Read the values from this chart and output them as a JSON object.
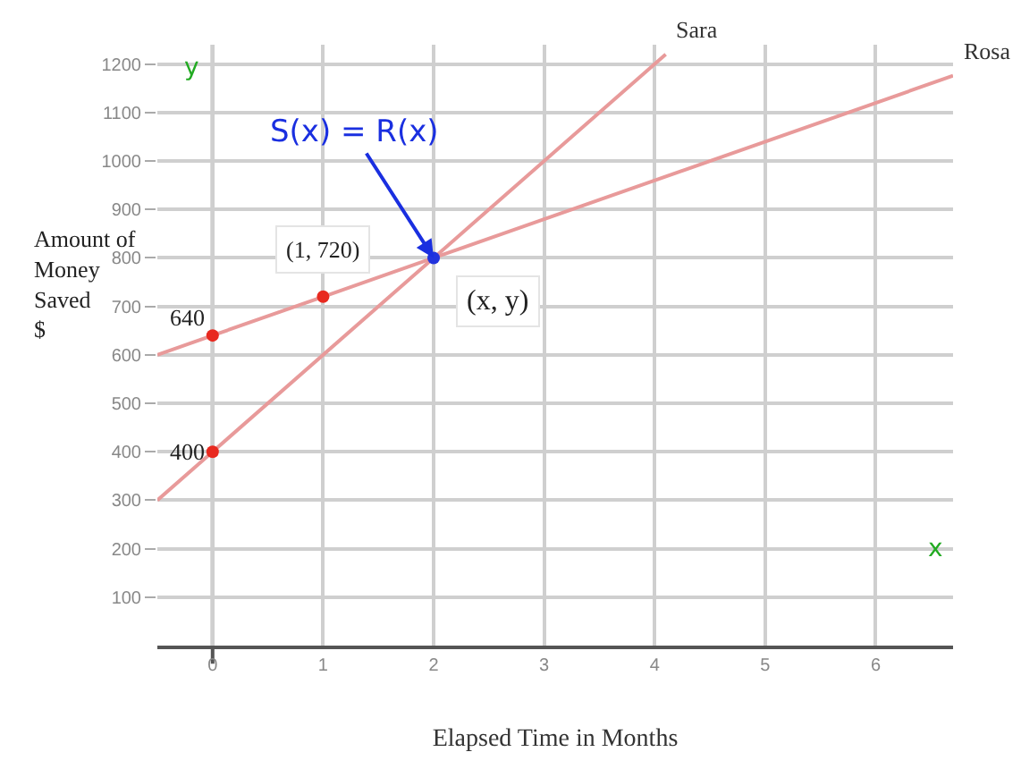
{
  "chart_data": {
    "type": "line",
    "xlabel": "Elapsed Time in Months",
    "ylabel": "Amount of\nMoney\nSaved\n$",
    "series": [
      {
        "name": "Sara",
        "color": "#e89a9a",
        "x": [
          -0.5,
          0,
          2,
          4.1
        ],
        "values": [
          300,
          400,
          800,
          1220
        ]
      },
      {
        "name": "Rosa",
        "color": "#e89a9a",
        "x": [
          -0.5,
          0,
          1,
          2,
          6.7
        ],
        "values": [
          600,
          640,
          720,
          800,
          1176
        ]
      },
      {
        "type": "scatter",
        "color": "#e8291f",
        "x": [
          0,
          0,
          1
        ],
        "values": [
          400,
          640,
          720
        ],
        "marker": "circle"
      },
      {
        "type": "scatter",
        "color": "#2233dd",
        "x": [
          2
        ],
        "values": [
          800
        ],
        "marker": "circle"
      }
    ],
    "xlim": [
      -0.5,
      6.7
    ],
    "xticks": [
      0,
      1,
      2,
      3,
      4,
      5,
      6
    ],
    "ylim": [
      0,
      1240
    ],
    "yticks": [
      100,
      200,
      300,
      400,
      500,
      600,
      700,
      800,
      900,
      1000,
      1100,
      1200
    ],
    "grid": true,
    "annotations": [
      {
        "text": "400",
        "x": 0,
        "y": 400
      },
      {
        "text": "640",
        "x": 0,
        "y": 640
      },
      {
        "text": "(1, 720)",
        "x": 1,
        "y": 720
      },
      {
        "text": "(x, y)",
        "x": 2,
        "y": 800
      },
      {
        "text": "S(x) = R(x)",
        "x": 2,
        "y": 800
      },
      "y",
      "x"
    ]
  }
}
